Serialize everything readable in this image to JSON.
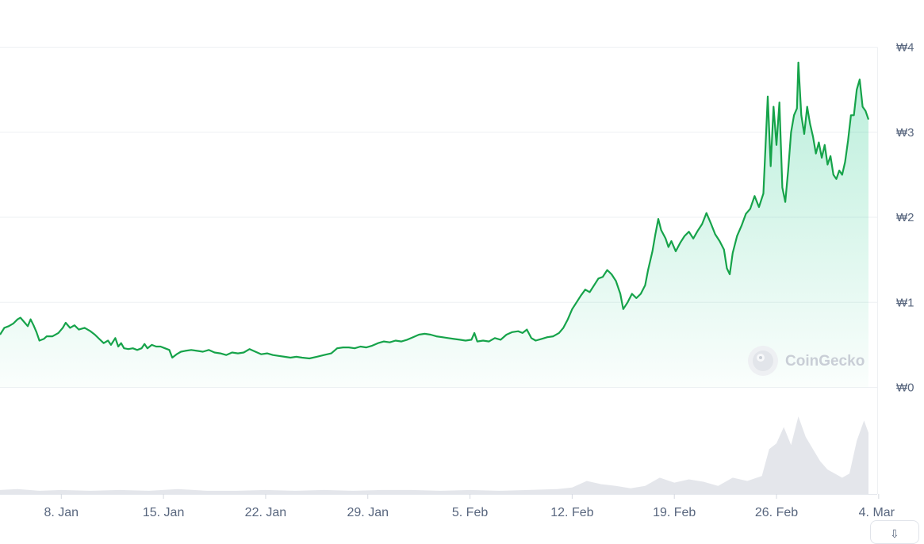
{
  "chart_data": {
    "type": "area",
    "title": "",
    "xlabel": "",
    "ylabel": "",
    "y_tick_labels": [
      "₩0",
      "₩1",
      "₩2",
      "₩3",
      "₩4"
    ],
    "y_ticks": [
      0,
      1,
      2,
      3,
      4
    ],
    "ylim": [
      0,
      4
    ],
    "x_tick_labels": [
      "8. Jan",
      "15. Jan",
      "22. Jan",
      "29. Jan",
      "5. Feb",
      "12. Feb",
      "19. Feb",
      "26. Feb",
      "4. Mar"
    ],
    "x_ticks": [
      8,
      15,
      22,
      29,
      36,
      43,
      50,
      57,
      64
    ],
    "xlim": [
      3.8,
      63.9
    ],
    "grid": true,
    "line_color": "#16a34a",
    "area_color": "#16c784",
    "volume_color": "#d8dce3",
    "series": [
      {
        "values": [
          [
            3.8,
            0.62
          ],
          [
            4.1,
            0.7
          ],
          [
            4.4,
            0.72
          ],
          [
            4.7,
            0.75
          ],
          [
            5.0,
            0.8
          ],
          [
            5.2,
            0.82
          ],
          [
            5.5,
            0.76
          ],
          [
            5.7,
            0.72
          ],
          [
            5.9,
            0.8
          ],
          [
            6.1,
            0.73
          ],
          [
            6.3,
            0.65
          ],
          [
            6.5,
            0.55
          ],
          [
            6.8,
            0.57
          ],
          [
            7.0,
            0.6
          ],
          [
            7.4,
            0.6
          ],
          [
            7.8,
            0.64
          ],
          [
            8.1,
            0.7
          ],
          [
            8.3,
            0.76
          ],
          [
            8.6,
            0.7
          ],
          [
            8.9,
            0.73
          ],
          [
            9.2,
            0.68
          ],
          [
            9.6,
            0.7
          ],
          [
            10.0,
            0.66
          ],
          [
            10.3,
            0.62
          ],
          [
            10.6,
            0.57
          ],
          [
            10.9,
            0.52
          ],
          [
            11.2,
            0.55
          ],
          [
            11.4,
            0.5
          ],
          [
            11.7,
            0.58
          ],
          [
            11.9,
            0.48
          ],
          [
            12.1,
            0.52
          ],
          [
            12.3,
            0.46
          ],
          [
            12.6,
            0.45
          ],
          [
            12.9,
            0.46
          ],
          [
            13.2,
            0.44
          ],
          [
            13.5,
            0.46
          ],
          [
            13.7,
            0.51
          ],
          [
            13.9,
            0.46
          ],
          [
            14.2,
            0.5
          ],
          [
            14.5,
            0.48
          ],
          [
            14.8,
            0.48
          ],
          [
            15.1,
            0.46
          ],
          [
            15.4,
            0.44
          ],
          [
            15.6,
            0.35
          ],
          [
            15.9,
            0.39
          ],
          [
            16.2,
            0.42
          ],
          [
            16.5,
            0.43
          ],
          [
            16.9,
            0.44
          ],
          [
            17.3,
            0.43
          ],
          [
            17.7,
            0.42
          ],
          [
            18.1,
            0.44
          ],
          [
            18.5,
            0.41
          ],
          [
            18.9,
            0.4
          ],
          [
            19.3,
            0.38
          ],
          [
            19.7,
            0.41
          ],
          [
            20.1,
            0.4
          ],
          [
            20.5,
            0.41
          ],
          [
            20.9,
            0.45
          ],
          [
            21.3,
            0.42
          ],
          [
            21.7,
            0.39
          ],
          [
            22.1,
            0.4
          ],
          [
            22.5,
            0.38
          ],
          [
            22.9,
            0.37
          ],
          [
            23.3,
            0.36
          ],
          [
            23.7,
            0.35
          ],
          [
            24.1,
            0.36
          ],
          [
            24.5,
            0.35
          ],
          [
            25.0,
            0.34
          ],
          [
            25.5,
            0.36
          ],
          [
            26.0,
            0.38
          ],
          [
            26.5,
            0.4
          ],
          [
            26.9,
            0.46
          ],
          [
            27.3,
            0.47
          ],
          [
            27.7,
            0.47
          ],
          [
            28.1,
            0.46
          ],
          [
            28.5,
            0.48
          ],
          [
            28.9,
            0.47
          ],
          [
            29.3,
            0.49
          ],
          [
            29.7,
            0.52
          ],
          [
            30.1,
            0.54
          ],
          [
            30.5,
            0.53
          ],
          [
            30.9,
            0.55
          ],
          [
            31.3,
            0.54
          ],
          [
            31.7,
            0.56
          ],
          [
            32.1,
            0.59
          ],
          [
            32.5,
            0.62
          ],
          [
            32.9,
            0.63
          ],
          [
            33.3,
            0.62
          ],
          [
            33.7,
            0.6
          ],
          [
            34.1,
            0.59
          ],
          [
            34.5,
            0.58
          ],
          [
            34.9,
            0.57
          ],
          [
            35.3,
            0.56
          ],
          [
            35.7,
            0.55
          ],
          [
            36.1,
            0.56
          ],
          [
            36.3,
            0.64
          ],
          [
            36.5,
            0.54
          ],
          [
            36.9,
            0.55
          ],
          [
            37.3,
            0.54
          ],
          [
            37.7,
            0.58
          ],
          [
            38.1,
            0.56
          ],
          [
            38.5,
            0.62
          ],
          [
            38.9,
            0.65
          ],
          [
            39.3,
            0.66
          ],
          [
            39.6,
            0.64
          ],
          [
            39.9,
            0.68
          ],
          [
            40.2,
            0.58
          ],
          [
            40.5,
            0.55
          ],
          [
            40.9,
            0.57
          ],
          [
            41.3,
            0.59
          ],
          [
            41.7,
            0.6
          ],
          [
            42.1,
            0.64
          ],
          [
            42.4,
            0.7
          ],
          [
            42.7,
            0.8
          ],
          [
            43.0,
            0.92
          ],
          [
            43.3,
            1.0
          ],
          [
            43.6,
            1.08
          ],
          [
            43.9,
            1.15
          ],
          [
            44.2,
            1.12
          ],
          [
            44.5,
            1.2
          ],
          [
            44.8,
            1.28
          ],
          [
            45.1,
            1.3
          ],
          [
            45.4,
            1.38
          ],
          [
            45.7,
            1.33
          ],
          [
            46.0,
            1.25
          ],
          [
            46.3,
            1.1
          ],
          [
            46.5,
            0.92
          ],
          [
            46.8,
            1.0
          ],
          [
            47.1,
            1.1
          ],
          [
            47.4,
            1.05
          ],
          [
            47.7,
            1.1
          ],
          [
            48.0,
            1.2
          ],
          [
            48.2,
            1.38
          ],
          [
            48.5,
            1.6
          ],
          [
            48.7,
            1.8
          ],
          [
            48.9,
            1.98
          ],
          [
            49.1,
            1.85
          ],
          [
            49.4,
            1.75
          ],
          [
            49.6,
            1.65
          ],
          [
            49.8,
            1.72
          ],
          [
            50.1,
            1.6
          ],
          [
            50.4,
            1.7
          ],
          [
            50.7,
            1.78
          ],
          [
            51.0,
            1.83
          ],
          [
            51.3,
            1.75
          ],
          [
            51.6,
            1.84
          ],
          [
            51.9,
            1.92
          ],
          [
            52.2,
            2.05
          ],
          [
            52.5,
            1.93
          ],
          [
            52.8,
            1.8
          ],
          [
            53.1,
            1.72
          ],
          [
            53.4,
            1.62
          ],
          [
            53.6,
            1.4
          ],
          [
            53.8,
            1.33
          ],
          [
            54.0,
            1.58
          ],
          [
            54.3,
            1.78
          ],
          [
            54.6,
            1.9
          ],
          [
            54.9,
            2.04
          ],
          [
            55.2,
            2.1
          ],
          [
            55.5,
            2.25
          ],
          [
            55.8,
            2.12
          ],
          [
            56.1,
            2.28
          ],
          [
            56.4,
            3.42
          ],
          [
            56.6,
            2.6
          ],
          [
            56.8,
            3.3
          ],
          [
            57.0,
            2.85
          ],
          [
            57.2,
            3.35
          ],
          [
            57.4,
            2.35
          ],
          [
            57.6,
            2.18
          ],
          [
            57.8,
            2.55
          ],
          [
            58.0,
            3.0
          ],
          [
            58.2,
            3.2
          ],
          [
            58.4,
            3.28
          ],
          [
            58.5,
            3.82
          ],
          [
            58.7,
            3.2
          ],
          [
            58.9,
            2.98
          ],
          [
            59.1,
            3.3
          ],
          [
            59.3,
            3.1
          ],
          [
            59.5,
            2.95
          ],
          [
            59.7,
            2.75
          ],
          [
            59.9,
            2.88
          ],
          [
            60.1,
            2.7
          ],
          [
            60.3,
            2.85
          ],
          [
            60.5,
            2.62
          ],
          [
            60.7,
            2.72
          ],
          [
            60.9,
            2.5
          ],
          [
            61.1,
            2.45
          ],
          [
            61.3,
            2.55
          ],
          [
            61.5,
            2.5
          ],
          [
            61.7,
            2.65
          ],
          [
            61.9,
            2.9
          ],
          [
            62.1,
            3.2
          ],
          [
            62.3,
            3.2
          ],
          [
            62.5,
            3.5
          ],
          [
            62.7,
            3.62
          ],
          [
            62.9,
            3.3
          ],
          [
            63.1,
            3.25
          ],
          [
            63.3,
            3.15
          ]
        ]
      }
    ],
    "volume": [
      [
        3.8,
        0.05
      ],
      [
        5.0,
        0.06
      ],
      [
        6.5,
        0.04
      ],
      [
        8.0,
        0.05
      ],
      [
        10.0,
        0.04
      ],
      [
        12.0,
        0.05
      ],
      [
        14.0,
        0.04
      ],
      [
        16.0,
        0.06
      ],
      [
        18.0,
        0.04
      ],
      [
        20.0,
        0.04
      ],
      [
        22.0,
        0.05
      ],
      [
        24.0,
        0.04
      ],
      [
        26.0,
        0.05
      ],
      [
        28.0,
        0.04
      ],
      [
        30.0,
        0.05
      ],
      [
        32.0,
        0.05
      ],
      [
        34.0,
        0.04
      ],
      [
        36.0,
        0.05
      ],
      [
        38.0,
        0.04
      ],
      [
        40.0,
        0.05
      ],
      [
        42.0,
        0.06
      ],
      [
        43.0,
        0.08
      ],
      [
        44.0,
        0.16
      ],
      [
        45.0,
        0.12
      ],
      [
        46.0,
        0.1
      ],
      [
        47.0,
        0.07
      ],
      [
        48.0,
        0.1
      ],
      [
        49.0,
        0.2
      ],
      [
        50.0,
        0.14
      ],
      [
        51.0,
        0.18
      ],
      [
        52.0,
        0.15
      ],
      [
        53.0,
        0.1
      ],
      [
        54.0,
        0.2
      ],
      [
        55.0,
        0.16
      ],
      [
        56.0,
        0.22
      ],
      [
        56.5,
        0.55
      ],
      [
        57.0,
        0.62
      ],
      [
        57.5,
        0.82
      ],
      [
        58.0,
        0.6
      ],
      [
        58.5,
        0.95
      ],
      [
        59.0,
        0.7
      ],
      [
        59.5,
        0.55
      ],
      [
        60.0,
        0.4
      ],
      [
        60.5,
        0.3
      ],
      [
        61.0,
        0.25
      ],
      [
        61.5,
        0.2
      ],
      [
        62.0,
        0.25
      ],
      [
        62.5,
        0.65
      ],
      [
        63.0,
        0.9
      ],
      [
        63.3,
        0.75
      ]
    ]
  },
  "watermark": {
    "text": "CoinGecko",
    "icon": "coingecko-logo-icon"
  },
  "corner_button": {
    "icon": "download-icon",
    "glyph": "⇩"
  }
}
